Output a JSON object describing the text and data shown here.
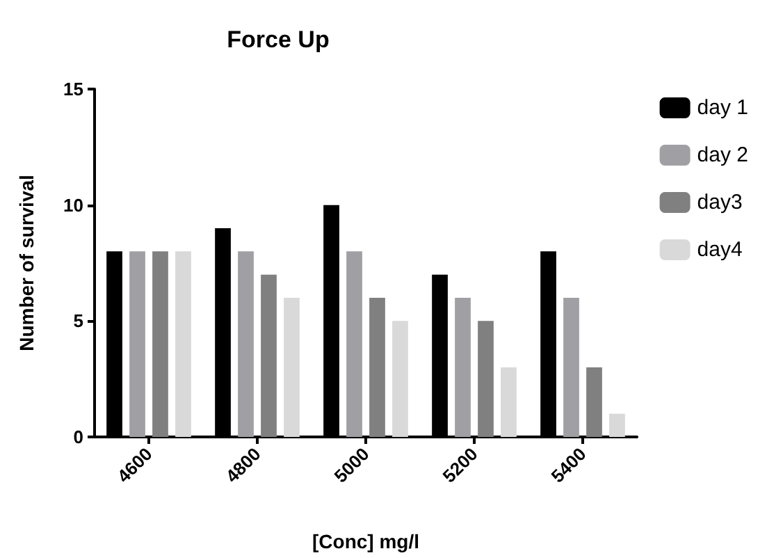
{
  "chart_data": {
    "type": "bar",
    "title": "Force Up",
    "xlabel": "[Conc] mg/l",
    "ylabel": "Number of survival",
    "categories": [
      "4600",
      "4800",
      "5000",
      "5200",
      "5400"
    ],
    "series": [
      {
        "name": "day 1",
        "color": "#000000",
        "values": [
          8,
          9,
          10,
          7,
          8
        ]
      },
      {
        "name": "day 2",
        "color": "#a0a0a4",
        "values": [
          8,
          8,
          8,
          6,
          6
        ]
      },
      {
        "name": "day3",
        "color": "#808080",
        "values": [
          8,
          7,
          6,
          5,
          3
        ]
      },
      {
        "name": "day4",
        "color": "#d9d9d9",
        "values": [
          8,
          6,
          5,
          3,
          1
        ]
      }
    ],
    "ylim": [
      0,
      15
    ],
    "yticks": [
      0,
      5,
      10,
      15
    ],
    "grid": false,
    "legend": "right"
  }
}
